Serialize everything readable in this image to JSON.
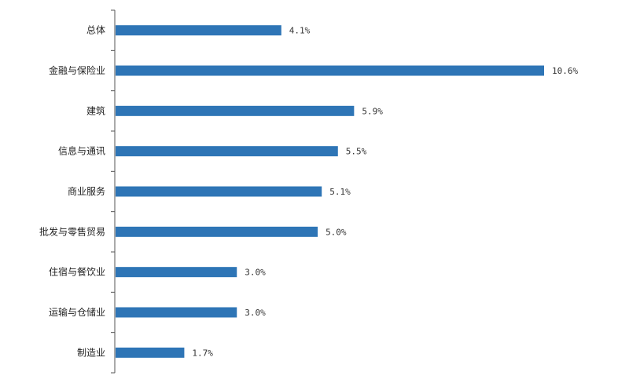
{
  "chart_data": {
    "type": "bar",
    "orientation": "horizontal",
    "categories": [
      "总体",
      "金融与保险业",
      "建筑",
      "信息与通讯",
      "商业服务",
      "批发与零售贸易",
      "住宿与餐饮业",
      "运输与仓储业",
      "制造业"
    ],
    "values": [
      4.1,
      10.6,
      5.9,
      5.5,
      5.1,
      5.0,
      3.0,
      3.0,
      1.7
    ],
    "data_labels": [
      "4.1%",
      "10.6%",
      "5.9%",
      "5.5%",
      "5.1%",
      "5.0%",
      "3.0%",
      "3.0%",
      "1.7%"
    ],
    "unit": "%",
    "xlim": [
      0,
      10.6
    ],
    "grid": false,
    "legend": "none",
    "bar_color": "#2e75b6"
  }
}
